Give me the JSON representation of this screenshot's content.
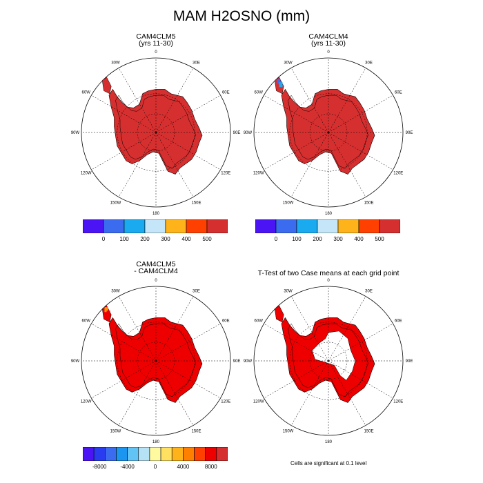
{
  "figure": {
    "title": "MAM H2OSNO (mm)"
  },
  "panels": [
    {
      "id": "p1",
      "title_line1": "CAM4CLM5",
      "title_line2": "(yrs 11-30)",
      "fill": "#d62f2f",
      "patch_colors": []
    },
    {
      "id": "p2",
      "title_line1": "CAM4CLM4",
      "title_line2": "(yrs 11-30)",
      "fill": "#d62f2f",
      "patch_colors": [
        "#3b6cf0",
        "#1aaaf0"
      ]
    },
    {
      "id": "p3",
      "title_line1": "CAM4CLM5",
      "title_line2": "- CAM4CLM4",
      "fill": "#ee0000",
      "patch_colors": [
        "#ff9a00",
        "#ee0000"
      ]
    },
    {
      "id": "p4",
      "title_line1": "T-Test of two Case means at each grid point",
      "title_line2": "",
      "fill": "#ee0000",
      "patch_colors": [],
      "interior_hole": true
    }
  ],
  "longitude_labels": [
    "0",
    "30E",
    "60E",
    "90E",
    "120E",
    "150E",
    "180",
    "150W",
    "120W",
    "90W",
    "60W",
    "30W"
  ],
  "colorbars": {
    "absolute": {
      "colors": [
        "#4b14f5",
        "#3b6cf0",
        "#1aaaf0",
        "#c4e6f8",
        "#ffb31a",
        "#ff4000",
        "#d62f2f"
      ],
      "labels": [
        "0",
        "100",
        "200",
        "300",
        "400",
        "500"
      ]
    },
    "difference": {
      "colors": [
        "#4b14f5",
        "#2a3cf0",
        "#3b6cf0",
        "#1a96f0",
        "#61c4f5",
        "#b6e2f5",
        "#fffaa0",
        "#ffe060",
        "#ffb31a",
        "#ff8000",
        "#ff4000",
        "#ee0000",
        "#d62f2f"
      ],
      "labels": [
        "-8000",
        "-4000",
        "0",
        "4000",
        "8000"
      ]
    }
  },
  "footnote": "Cells are significant at 0.1 level"
}
